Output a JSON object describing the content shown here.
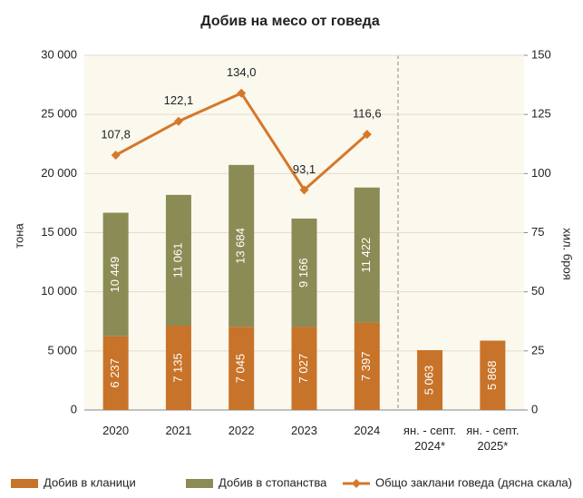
{
  "chart_data": {
    "type": "bar_line",
    "title": "Добив на месо от говеда",
    "ylabel": "тона",
    "y2label": "хил. броя",
    "categories": [
      "2020",
      "2021",
      "2022",
      "2023",
      "2024",
      "ян. - септ. 2024*",
      "ян. - септ. 2025*"
    ],
    "series": [
      {
        "name": "Добив в кланици",
        "color": "#c8732a",
        "type": "bar",
        "values": [
          6237,
          7135,
          7045,
          7027,
          7397,
          5063,
          5868
        ],
        "value_labels": [
          "6 237",
          "7 135",
          "7 045",
          "7 027",
          "7 397",
          "5 063",
          "5 868"
        ]
      },
      {
        "name": "Добив в стопанства",
        "color": "#8b8b55",
        "type": "bar",
        "values": [
          10449,
          11061,
          13684,
          9166,
          11422,
          null,
          null
        ],
        "value_labels": [
          "10 449",
          "11 061",
          "13 684",
          "9 166",
          "11 422",
          null,
          null
        ]
      },
      {
        "name": "Общо заклани говеда (дясна скала)",
        "color": "#d4782a",
        "type": "line",
        "axis": "y2",
        "values": [
          107.8,
          122.1,
          134.0,
          93.1,
          116.6,
          null,
          null
        ],
        "value_labels": [
          "107,8",
          "122,1",
          "134,0",
          "93,1",
          "116,6",
          null,
          null
        ]
      }
    ],
    "ylim": [
      0,
      30000
    ],
    "yticks": [
      0,
      {
        "value": 5000,
        "label": "5 000"
      },
      {
        "value": 10000,
        "label": "10 000"
      },
      {
        "value": 15000,
        "label": "15 000"
      },
      {
        "value": 20000,
        "label": "20 000"
      },
      {
        "value": 25000,
        "label": "25 000"
      },
      {
        "value": 30000,
        "label": "30 000"
      }
    ],
    "y2lim": [
      0,
      150
    ],
    "y2ticks": [
      0,
      25,
      50,
      75,
      100,
      125,
      150
    ],
    "grid": true
  }
}
